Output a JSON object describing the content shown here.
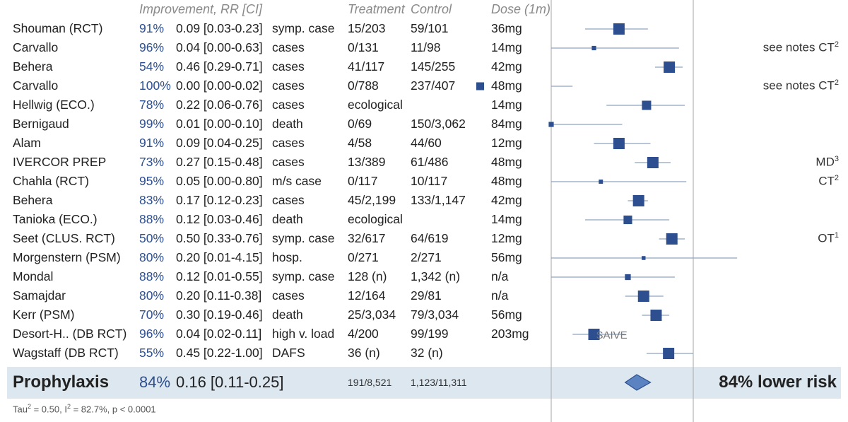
{
  "header": {
    "improvement": "Improvement, RR [CI]",
    "treatment": "Treatment",
    "control": "Control",
    "dose": "Dose (1m)"
  },
  "chart_data": {
    "type": "forest",
    "scale": "log",
    "xlim": [
      0.01,
      1.0
    ],
    "rows": [
      {
        "name": "Shouman (RCT)",
        "improvement": "91%",
        "rr_text": "0.09 [0.03-0.23]",
        "outcome": "symp. case",
        "treatment": "15/203",
        "control": "59/101",
        "dose": "36mg",
        "rr": 0.09,
        "lo": 0.03,
        "hi": 0.23,
        "note": "",
        "note_sup": ""
      },
      {
        "name": "Carvallo",
        "improvement": "96%",
        "rr_text": "0.04 [0.00-0.63]",
        "outcome": "cases",
        "treatment": "0/131",
        "control": "11/98",
        "dose": "14mg",
        "rr": 0.04,
        "lo": 0.003,
        "hi": 0.63,
        "note": "see notes CT",
        "note_sup": "2"
      },
      {
        "name": "Behera",
        "improvement": "54%",
        "rr_text": "0.46 [0.29-0.71]",
        "outcome": "cases",
        "treatment": "41/117",
        "control": "145/255",
        "dose": "42mg",
        "rr": 0.46,
        "lo": 0.29,
        "hi": 0.71,
        "note": "",
        "note_sup": ""
      },
      {
        "name": "Carvallo",
        "improvement": "100%",
        "rr_text": "0.00 [0.00-0.02]",
        "outcome": "cases",
        "treatment": "0/788",
        "control": "237/407",
        "dose": "48mg",
        "rr": 0.001,
        "lo": 0.001,
        "hi": 0.02,
        "note": "see notes CT",
        "note_sup": "2"
      },
      {
        "name": "Hellwig (ECO.)",
        "improvement": "78%",
        "rr_text": "0.22 [0.06-0.76]",
        "outcome": "cases",
        "treatment": "ecological",
        "control": "",
        "dose": "14mg",
        "rr": 0.22,
        "lo": 0.06,
        "hi": 0.76,
        "note": "",
        "note_sup": ""
      },
      {
        "name": "Bernigaud",
        "improvement": "99%",
        "rr_text": "0.01 [0.00-0.10]",
        "outcome": "death",
        "treatment": "0/69",
        "control": "150/3,062",
        "dose": "84mg",
        "rr": 0.01,
        "lo": 0.001,
        "hi": 0.1,
        "note": "",
        "note_sup": ""
      },
      {
        "name": "Alam",
        "improvement": "91%",
        "rr_text": "0.09 [0.04-0.25]",
        "outcome": "cases",
        "treatment": "4/58",
        "control": "44/60",
        "dose": "12mg",
        "rr": 0.09,
        "lo": 0.04,
        "hi": 0.25,
        "note": "",
        "note_sup": ""
      },
      {
        "name": "IVERCOR PREP",
        "improvement": "73%",
        "rr_text": "0.27 [0.15-0.48]",
        "outcome": "cases",
        "treatment": "13/389",
        "control": "61/486",
        "dose": "48mg",
        "rr": 0.27,
        "lo": 0.15,
        "hi": 0.48,
        "note": "MD",
        "note_sup": "3"
      },
      {
        "name": "Chahla (RCT)",
        "improvement": "95%",
        "rr_text": "0.05 [0.00-0.80]",
        "outcome": "m/s case",
        "treatment": "0/117",
        "control": "10/117",
        "dose": "48mg",
        "rr": 0.05,
        "lo": 0.003,
        "hi": 0.8,
        "note": "CT",
        "note_sup": "2"
      },
      {
        "name": "Behera",
        "improvement": "83%",
        "rr_text": "0.17 [0.12-0.23]",
        "outcome": "cases",
        "treatment": "45/2,199",
        "control": "133/1,147",
        "dose": "42mg",
        "rr": 0.17,
        "lo": 0.12,
        "hi": 0.23,
        "note": "",
        "note_sup": ""
      },
      {
        "name": "Tanioka (ECO.)",
        "improvement": "88%",
        "rr_text": "0.12 [0.03-0.46]",
        "outcome": "death",
        "treatment": "ecological",
        "control": "",
        "dose": "14mg",
        "rr": 0.12,
        "lo": 0.03,
        "hi": 0.46,
        "note": "",
        "note_sup": ""
      },
      {
        "name": "Seet (CLUS. RCT)",
        "improvement": "50%",
        "rr_text": "0.50 [0.33-0.76]",
        "outcome": "symp. case",
        "treatment": "32/617",
        "control": "64/619",
        "dose": "12mg",
        "rr": 0.5,
        "lo": 0.33,
        "hi": 0.76,
        "note": "OT",
        "note_sup": "1"
      },
      {
        "name": "Morgenstern (PSM)",
        "improvement": "80%",
        "rr_text": "0.20 [0.01-4.15]",
        "outcome": "hosp.",
        "treatment": "0/271",
        "control": "2/271",
        "dose": "56mg",
        "rr": 0.2,
        "lo": 0.01,
        "hi": 4.15,
        "note": "",
        "note_sup": ""
      },
      {
        "name": "Mondal",
        "improvement": "88%",
        "rr_text": "0.12 [0.01-0.55]",
        "outcome": "symp. case",
        "treatment": "128 (n)",
        "control": "1,342 (n)",
        "dose": "n/a",
        "rr": 0.12,
        "lo": 0.01,
        "hi": 0.55,
        "note": "",
        "note_sup": ""
      },
      {
        "name": "Samajdar",
        "improvement": "80%",
        "rr_text": "0.20 [0.11-0.38]",
        "outcome": "cases",
        "treatment": "12/164",
        "control": "29/81",
        "dose": "n/a",
        "rr": 0.2,
        "lo": 0.11,
        "hi": 0.38,
        "note": "",
        "note_sup": ""
      },
      {
        "name": "Kerr (PSM)",
        "improvement": "70%",
        "rr_text": "0.30 [0.19-0.46]",
        "outcome": "death",
        "treatment": "25/3,034",
        "control": "79/3,034",
        "dose": "56mg",
        "rr": 0.3,
        "lo": 0.19,
        "hi": 0.46,
        "note": "",
        "note_sup": ""
      },
      {
        "name": "Desort-H.. (DB RCT)",
        "improvement": "96%",
        "rr_text": "0.04 [0.02-0.11]",
        "outcome": "high v. load",
        "treatment": "4/200",
        "control": "99/199",
        "dose": "203mg",
        "rr": 0.04,
        "lo": 0.02,
        "hi": 0.11,
        "note": "",
        "note_sup": "",
        "plot_label": "SAIVE"
      },
      {
        "name": "Wagstaff (DB RCT)",
        "improvement": "55%",
        "rr_text": "0.45 [0.22-1.00]",
        "outcome": "DAFS",
        "treatment": "36 (n)",
        "control": "32 (n)",
        "dose": "",
        "rr": 0.45,
        "lo": 0.22,
        "hi": 1.0,
        "note": "",
        "note_sup": ""
      }
    ],
    "summary": {
      "name": "Prophylaxis",
      "improvement": "84%",
      "rr_text": "0.16 [0.11-0.25]",
      "treatment": "191/8,521",
      "control": "1,123/11,311",
      "rr": 0.16,
      "lo": 0.11,
      "hi": 0.25,
      "result": "84% lower risk"
    },
    "stats": {
      "tau_label": "Tau",
      "tau_sup": "2",
      "tau_rest": " = 0.50, I",
      "i_sup": "2",
      "i_rest": " = 82.7%, p < 0.0001"
    },
    "colors": {
      "marker": "#2d4f8f",
      "ci_line": "#8fa3c0",
      "axis": "#b5b5b5",
      "summary_fill": "#5b83c2"
    }
  }
}
